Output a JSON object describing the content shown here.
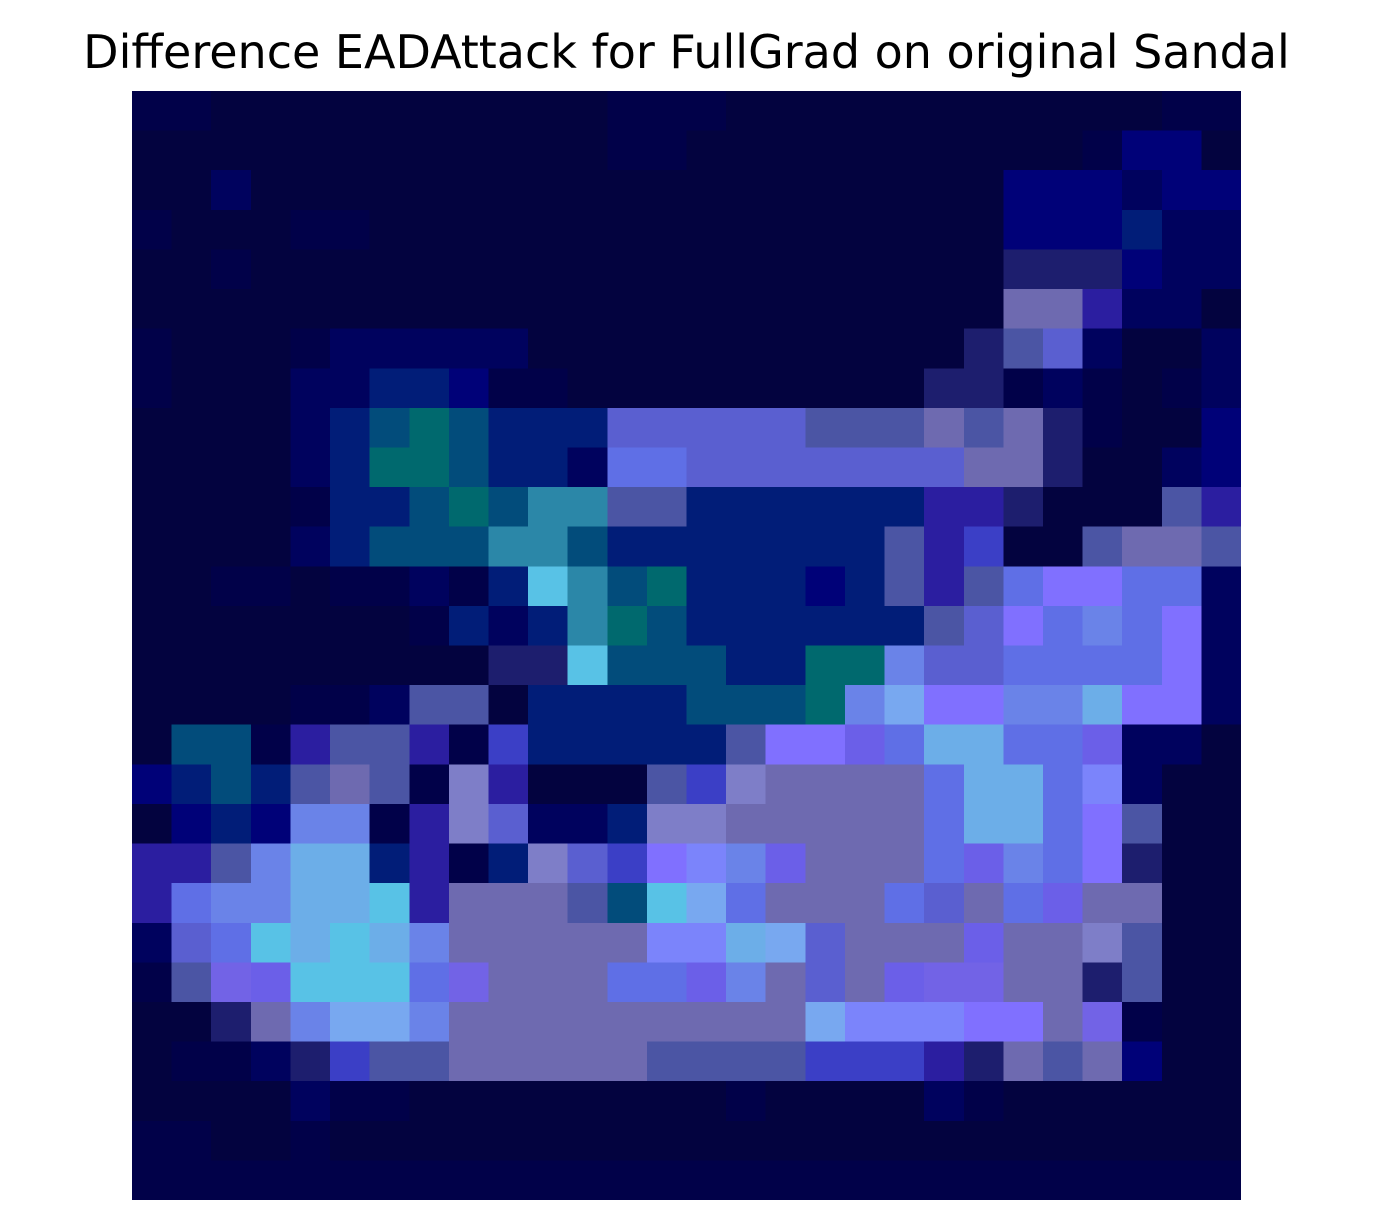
{
  "title": "Difference EADAttack for FullGrad on original Sandal",
  "chart_data": {
    "type": "heatmap",
    "title": "Difference EADAttack for FullGrad on original Sandal",
    "rows": 28,
    "cols": 28,
    "axes_visible": false,
    "colorbar": false,
    "palette": {
      "0": "#03033f",
      "1": "#010149",
      "2": "#00025e",
      "3": "#000178",
      "4": "#011d78",
      "5": "#1d1e6e",
      "6": "#2b1ea0",
      "7": "#3b3fc6",
      "8": "#024c7b",
      "9": "#00696e",
      "a": "#2b87a8",
      "b": "#4b55a4",
      "c": "#5a5fd0",
      "d": "#6b5fe8",
      "e": "#7263e6",
      "f": "#6e6ab0",
      "g": "#5f6fe6",
      "h": "#6a83e8",
      "i": "#6caee8",
      "j": "#78a8f0",
      "k": "#58c2e6",
      "l": "#7b84fb",
      "m": "#8070ff",
      "n": "#7e7ec8"
    },
    "grid": [
      "1100000000001110000000000011",
      "0000000000001100000000001330",
      "0020000000000000000000333233",
      "1000110000000000000000333422",
      "0010000000000000000000555322",
      "0000000000000000000000ff6220",
      "1000122222000000000005bc2002",
      "1000224431100000000055121012",
      "000024898444cccccbbbfbf51003",
      "000024998442ggcccccccff50023",
      "0000144898aabb444444665000b6",
      "000024888aa84444444b6700bffb",
      "0011011214ka8944434b6bgmmgg2",
      "00000001424a98444444bcmghgm2",
      "00000000055k8884499hccggggm2",
      "0000112bb044448889hjmmhhimm2",
      "08816bb61744444bmmdgiiggd22",
      "3484bfb1n6000b7nffffgiigl200",
      "0343hh16nc224nnfffffgiigmb00",
      "66bhii4614nc7mlhdfffgdhgm500",
      "6ghhiik6fffb8kjgfffgcfgdff00",
      "2cgkikihfffffllijcfffdffnb00",
      "1bedkkkgefffggdhfcfdeeff5b00",
      "005fhjjhfffffffffjlllmmfe100",
      "011257bbfffffbbbb77765fbf300",
      "0000211000000001000021000000",
      "1100100000000000000000000000",
      "1111111111111111111111111111"
    ]
  }
}
